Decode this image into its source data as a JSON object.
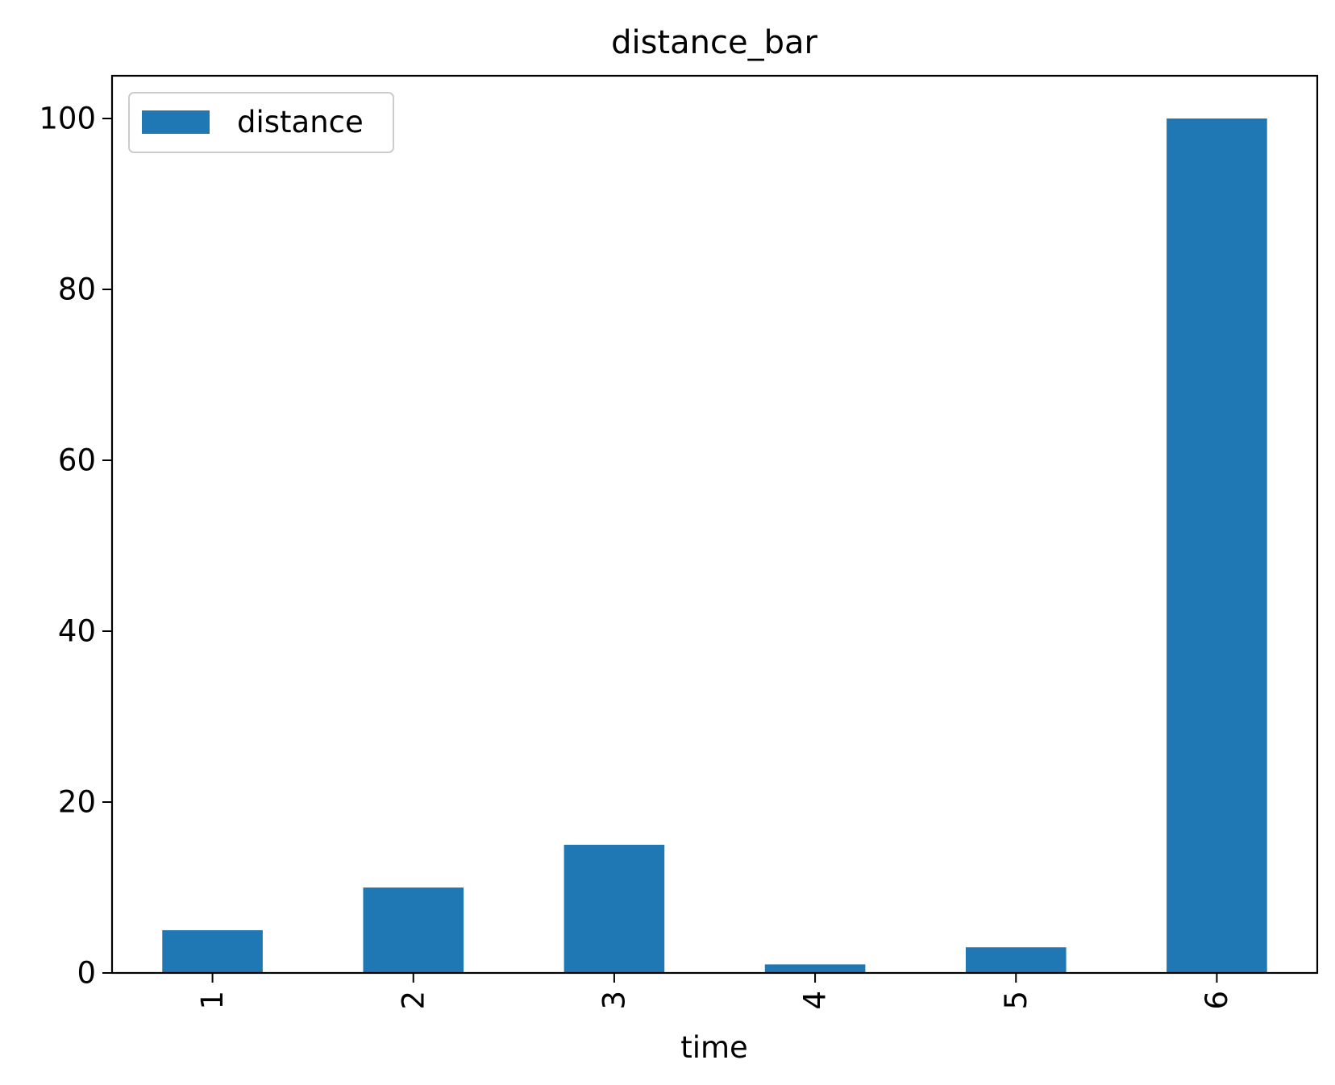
{
  "chart_data": {
    "type": "bar",
    "title": "distance_bar",
    "xlabel": "time",
    "ylabel": "",
    "categories": [
      "1",
      "2",
      "3",
      "4",
      "5",
      "6"
    ],
    "series": [
      {
        "name": "distance",
        "values": [
          5,
          10,
          15,
          1,
          3,
          100
        ],
        "color": "#1f77b4"
      }
    ],
    "ylim": [
      0,
      105
    ],
    "yticks": [
      0,
      20,
      40,
      60,
      80,
      100
    ],
    "xtick_rotation": "vertical",
    "grid": false,
    "legend": {
      "position": "top-left",
      "entries": [
        "distance"
      ]
    }
  }
}
